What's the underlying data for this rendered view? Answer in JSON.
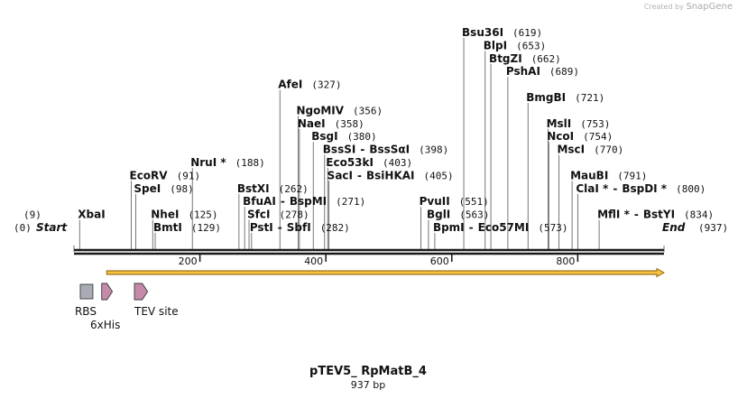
{
  "credit": {
    "text": "Created by",
    "brand": "SnapGene"
  },
  "map": {
    "name": "pTEV5_ RpMatB_4",
    "length_label": "937 bp",
    "length_bp": 937,
    "start_label": "Start",
    "end_label": "End",
    "start_pos": "(0)",
    "end_pos": "(937)",
    "colors": {
      "backbone": "#1a1a1a",
      "arrow_fill": "#f5c242",
      "arrow_stroke": "#8a5a00",
      "rbs": "#a9acb5",
      "tag": "#c48aa8"
    }
  },
  "ticks": [
    {
      "label": "200",
      "bp": 200
    },
    {
      "label": "400",
      "bp": 400
    },
    {
      "label": "600",
      "bp": 600
    },
    {
      "label": "800",
      "bp": 800
    }
  ],
  "sites": [
    {
      "name": "XbaI",
      "pos": "(9)",
      "bp": 9,
      "row": 1,
      "pos_left": true
    },
    {
      "name": "EcoRV",
      "pos": "(91)",
      "bp": 91,
      "row": 4
    },
    {
      "name": "SpeI",
      "pos": "(98)",
      "bp": 98,
      "row": 3
    },
    {
      "name": "NheI",
      "pos": "(125)",
      "bp": 125,
      "row": 1
    },
    {
      "name": "BmtI",
      "pos": "(129)",
      "bp": 129,
      "row": 0
    },
    {
      "name": "NruI *",
      "pos": "(188)",
      "bp": 188,
      "row": 5
    },
    {
      "name": "BstXI",
      "pos": "(262)",
      "bp": 262,
      "row": 3
    },
    {
      "name": "BfuAI",
      "pair": "BspMI",
      "pos": "(271)",
      "bp": 271,
      "row": 2
    },
    {
      "name": "SfcI",
      "pos": "(278)",
      "bp": 278,
      "row": 1
    },
    {
      "name": "PstI",
      "pair": "SbfI",
      "pos": "(282)",
      "bp": 282,
      "row": 0
    },
    {
      "name": "AfeI",
      "pos": "(327)",
      "bp": 327,
      "row": 11
    },
    {
      "name": "NgoMIV",
      "pos": "(356)",
      "bp": 356,
      "row": 9
    },
    {
      "name": "NaeI",
      "pos": "(358)",
      "bp": 358,
      "row": 8
    },
    {
      "name": "BsgI",
      "pos": "(380)",
      "bp": 380,
      "row": 7
    },
    {
      "name": "BssSI",
      "pair": "BssSαI",
      "pos": "(398)",
      "bp": 398,
      "row": 6
    },
    {
      "name": "Eco53kI",
      "pos": "(403)",
      "bp": 403,
      "row": 5
    },
    {
      "name": "SacI",
      "pair": "BsiHKAI",
      "pos": "(405)",
      "bp": 405,
      "row": 4
    },
    {
      "name": "PvuII",
      "pos": "(551)",
      "bp": 551,
      "row": 2
    },
    {
      "name": "BglI",
      "pos": "(563)",
      "bp": 563,
      "row": 1
    },
    {
      "name": "BpmI",
      "pair": "Eco57MI",
      "pos": "(573)",
      "bp": 573,
      "row": 0
    },
    {
      "name": "Bsu36I",
      "pos": "(619)",
      "bp": 619,
      "row": 15
    },
    {
      "name": "BlpI",
      "pos": "(653)",
      "bp": 653,
      "row": 14
    },
    {
      "name": "BtgZI",
      "pos": "(662)",
      "bp": 662,
      "row": 13
    },
    {
      "name": "PshAI",
      "pos": "(689)",
      "bp": 689,
      "row": 12
    },
    {
      "name": "BmgBI",
      "pos": "(721)",
      "bp": 721,
      "row": 10
    },
    {
      "name": "MslI",
      "pos": "(753)",
      "bp": 753,
      "row": 8
    },
    {
      "name": "NcoI",
      "pos": "(754)",
      "bp": 754,
      "row": 7
    },
    {
      "name": "MscI",
      "pos": "(770)",
      "bp": 770,
      "row": 6
    },
    {
      "name": "MauBI",
      "pos": "(791)",
      "bp": 791,
      "row": 4
    },
    {
      "name": "ClaI *",
      "pair": "BspDI *",
      "pos": "(800)",
      "bp": 800,
      "row": 3
    },
    {
      "name": "MflI *",
      "pair": "BstYI",
      "pos": "(834)",
      "bp": 834,
      "row": 1
    }
  ],
  "features": [
    {
      "label": "RBS",
      "kind": "box",
      "start_bp": 10,
      "end_bp": 30
    },
    {
      "label": "6xHis",
      "kind": "arrow",
      "start_bp": 44,
      "end_bp": 61
    },
    {
      "label": "TEV site",
      "kind": "arrow",
      "start_bp": 96,
      "end_bp": 117
    }
  ],
  "orf": {
    "start_bp": 52,
    "end_bp": 937
  }
}
